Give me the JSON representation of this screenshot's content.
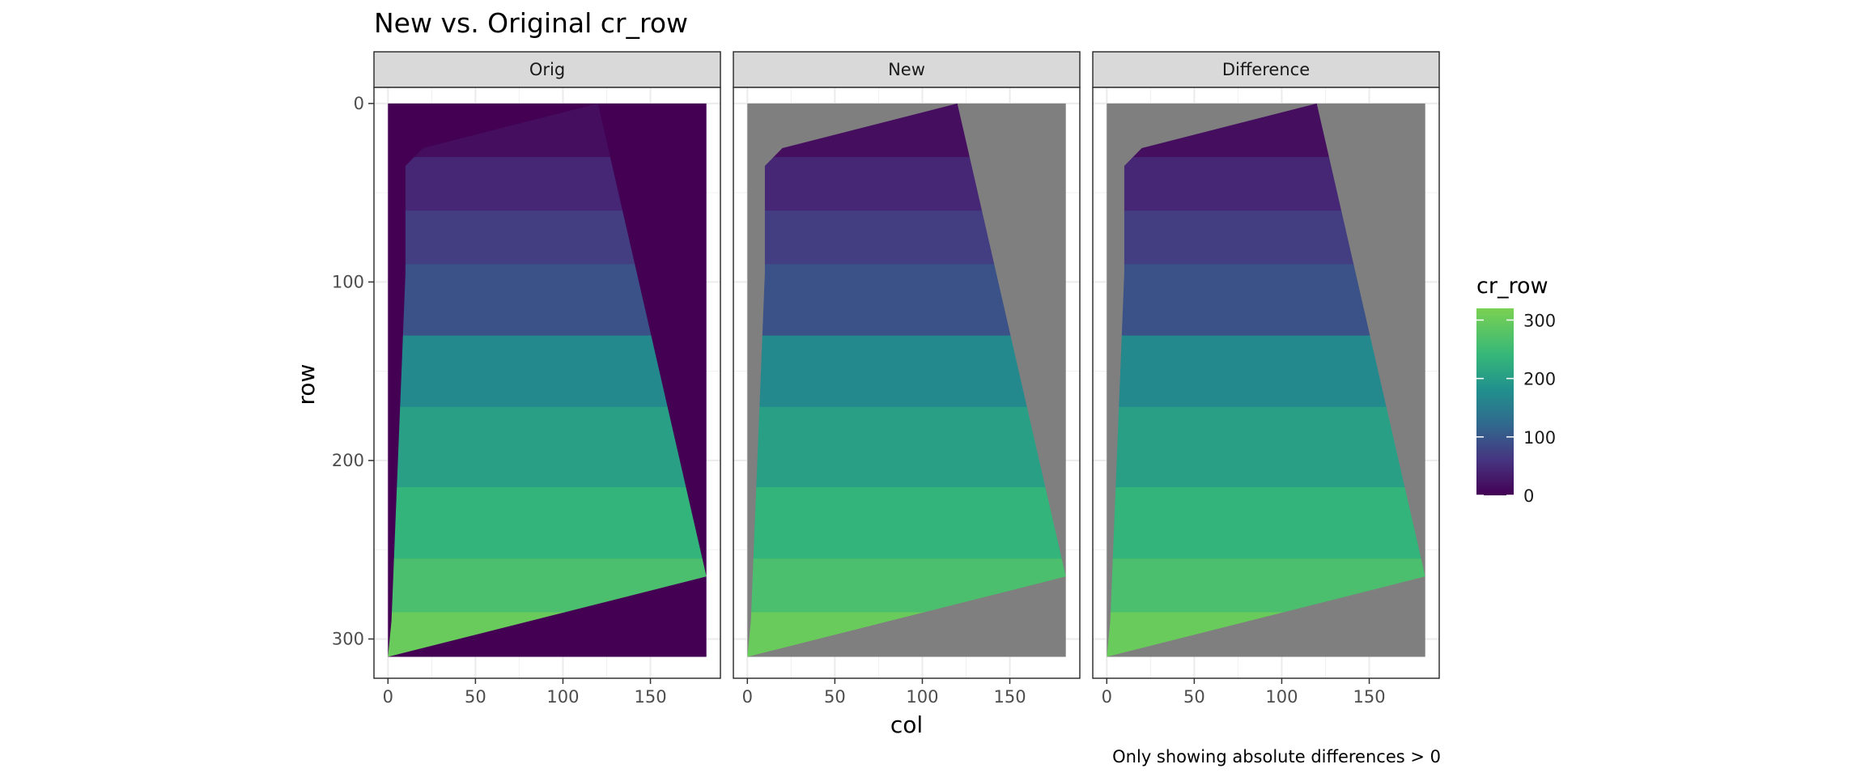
{
  "chart_data": {
    "type": "heatmap",
    "title": "New vs. Original cr_row",
    "facets": [
      "Orig",
      "New",
      "Difference"
    ],
    "xlabel": "col",
    "ylabel": "row",
    "xlim": [
      -8,
      190
    ],
    "ylim": [
      -9,
      322
    ],
    "y_reversed": true,
    "grid": true,
    "x_ticks": [
      0,
      50,
      100,
      150
    ],
    "x_tick_labels": [
      "0",
      "50",
      "100",
      "150"
    ],
    "y_ticks": [
      0,
      100,
      200,
      300
    ],
    "y_tick_labels": [
      "0",
      "100",
      "200",
      "300"
    ],
    "raster_extent": {
      "col": [
        0,
        182
      ],
      "row": [
        0,
        310
      ]
    },
    "valid_region_polygon": [
      [
        120,
        0
      ],
      [
        182,
        265
      ],
      [
        0,
        310
      ],
      [
        2,
        290
      ],
      [
        10,
        95
      ],
      [
        10,
        35
      ],
      [
        20,
        25
      ]
    ],
    "zero_region_fill": {
      "Orig": "#440154",
      "New": "#7f7f7f",
      "Difference": "#7f7f7f"
    },
    "color_scale": {
      "name": "cr_row",
      "palette": "viridis",
      "limits": [
        0,
        320
      ],
      "breaks": [
        0,
        100,
        200,
        300
      ],
      "break_labels": [
        "0",
        "100",
        "200",
        "300"
      ],
      "stops": [
        {
          "value": 0,
          "color": "#440154"
        },
        {
          "value": 60,
          "color": "#463480"
        },
        {
          "value": 120,
          "color": "#31688e"
        },
        {
          "value": 180,
          "color": "#21908d"
        },
        {
          "value": 240,
          "color": "#35b779"
        },
        {
          "value": 320,
          "color": "#7ad151"
        }
      ]
    },
    "value_bands": [
      {
        "row_from": 0,
        "row_to": 30,
        "value": 15
      },
      {
        "row_from": 30,
        "row_to": 60,
        "value": 45
      },
      {
        "row_from": 60,
        "row_to": 90,
        "value": 70
      },
      {
        "row_from": 90,
        "row_to": 130,
        "value": 95
      },
      {
        "row_from": 130,
        "row_to": 170,
        "value": 170
      },
      {
        "row_from": 170,
        "row_to": 215,
        "value": 205
      },
      {
        "row_from": 215,
        "row_to": 255,
        "value": 235
      },
      {
        "row_from": 255,
        "row_to": 285,
        "value": 265
      },
      {
        "row_from": 285,
        "row_to": 310,
        "value": 300
      }
    ],
    "caption": "Only showing absolute differences > 0"
  }
}
